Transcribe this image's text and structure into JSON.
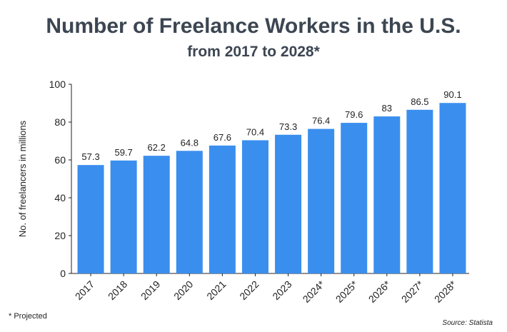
{
  "title": "Number of Freelance Workers in the U.S.",
  "subtitle": "from 2017 to 2028*",
  "footnote": "* Projected",
  "source": "Source: Statista",
  "chart_data": {
    "type": "bar",
    "title": "Number of Freelance Workers in the U.S.",
    "subtitle": "from 2017 to 2028*",
    "xlabel": "",
    "ylabel": "No. of freelancers in millions",
    "ylim": [
      0,
      100
    ],
    "yticks": [
      0,
      20,
      40,
      60,
      80,
      100
    ],
    "categories": [
      "2017",
      "2018",
      "2019",
      "2020",
      "2021",
      "2022",
      "2023",
      "2024*",
      "2025*",
      "2026*",
      "2027*",
      "2028*"
    ],
    "values": [
      57.3,
      59.7,
      62.2,
      64.8,
      67.6,
      70.4,
      73.3,
      76.4,
      79.6,
      83,
      86.5,
      90.1
    ],
    "data_labels": [
      "57.3",
      "59.7",
      "62.2",
      "64.8",
      "67.6",
      "70.4",
      "73.3",
      "76.4",
      "79.6",
      "83",
      "86.5",
      "90.1"
    ],
    "bar_color": "#3a8eee",
    "grid": false,
    "legend": "none"
  }
}
